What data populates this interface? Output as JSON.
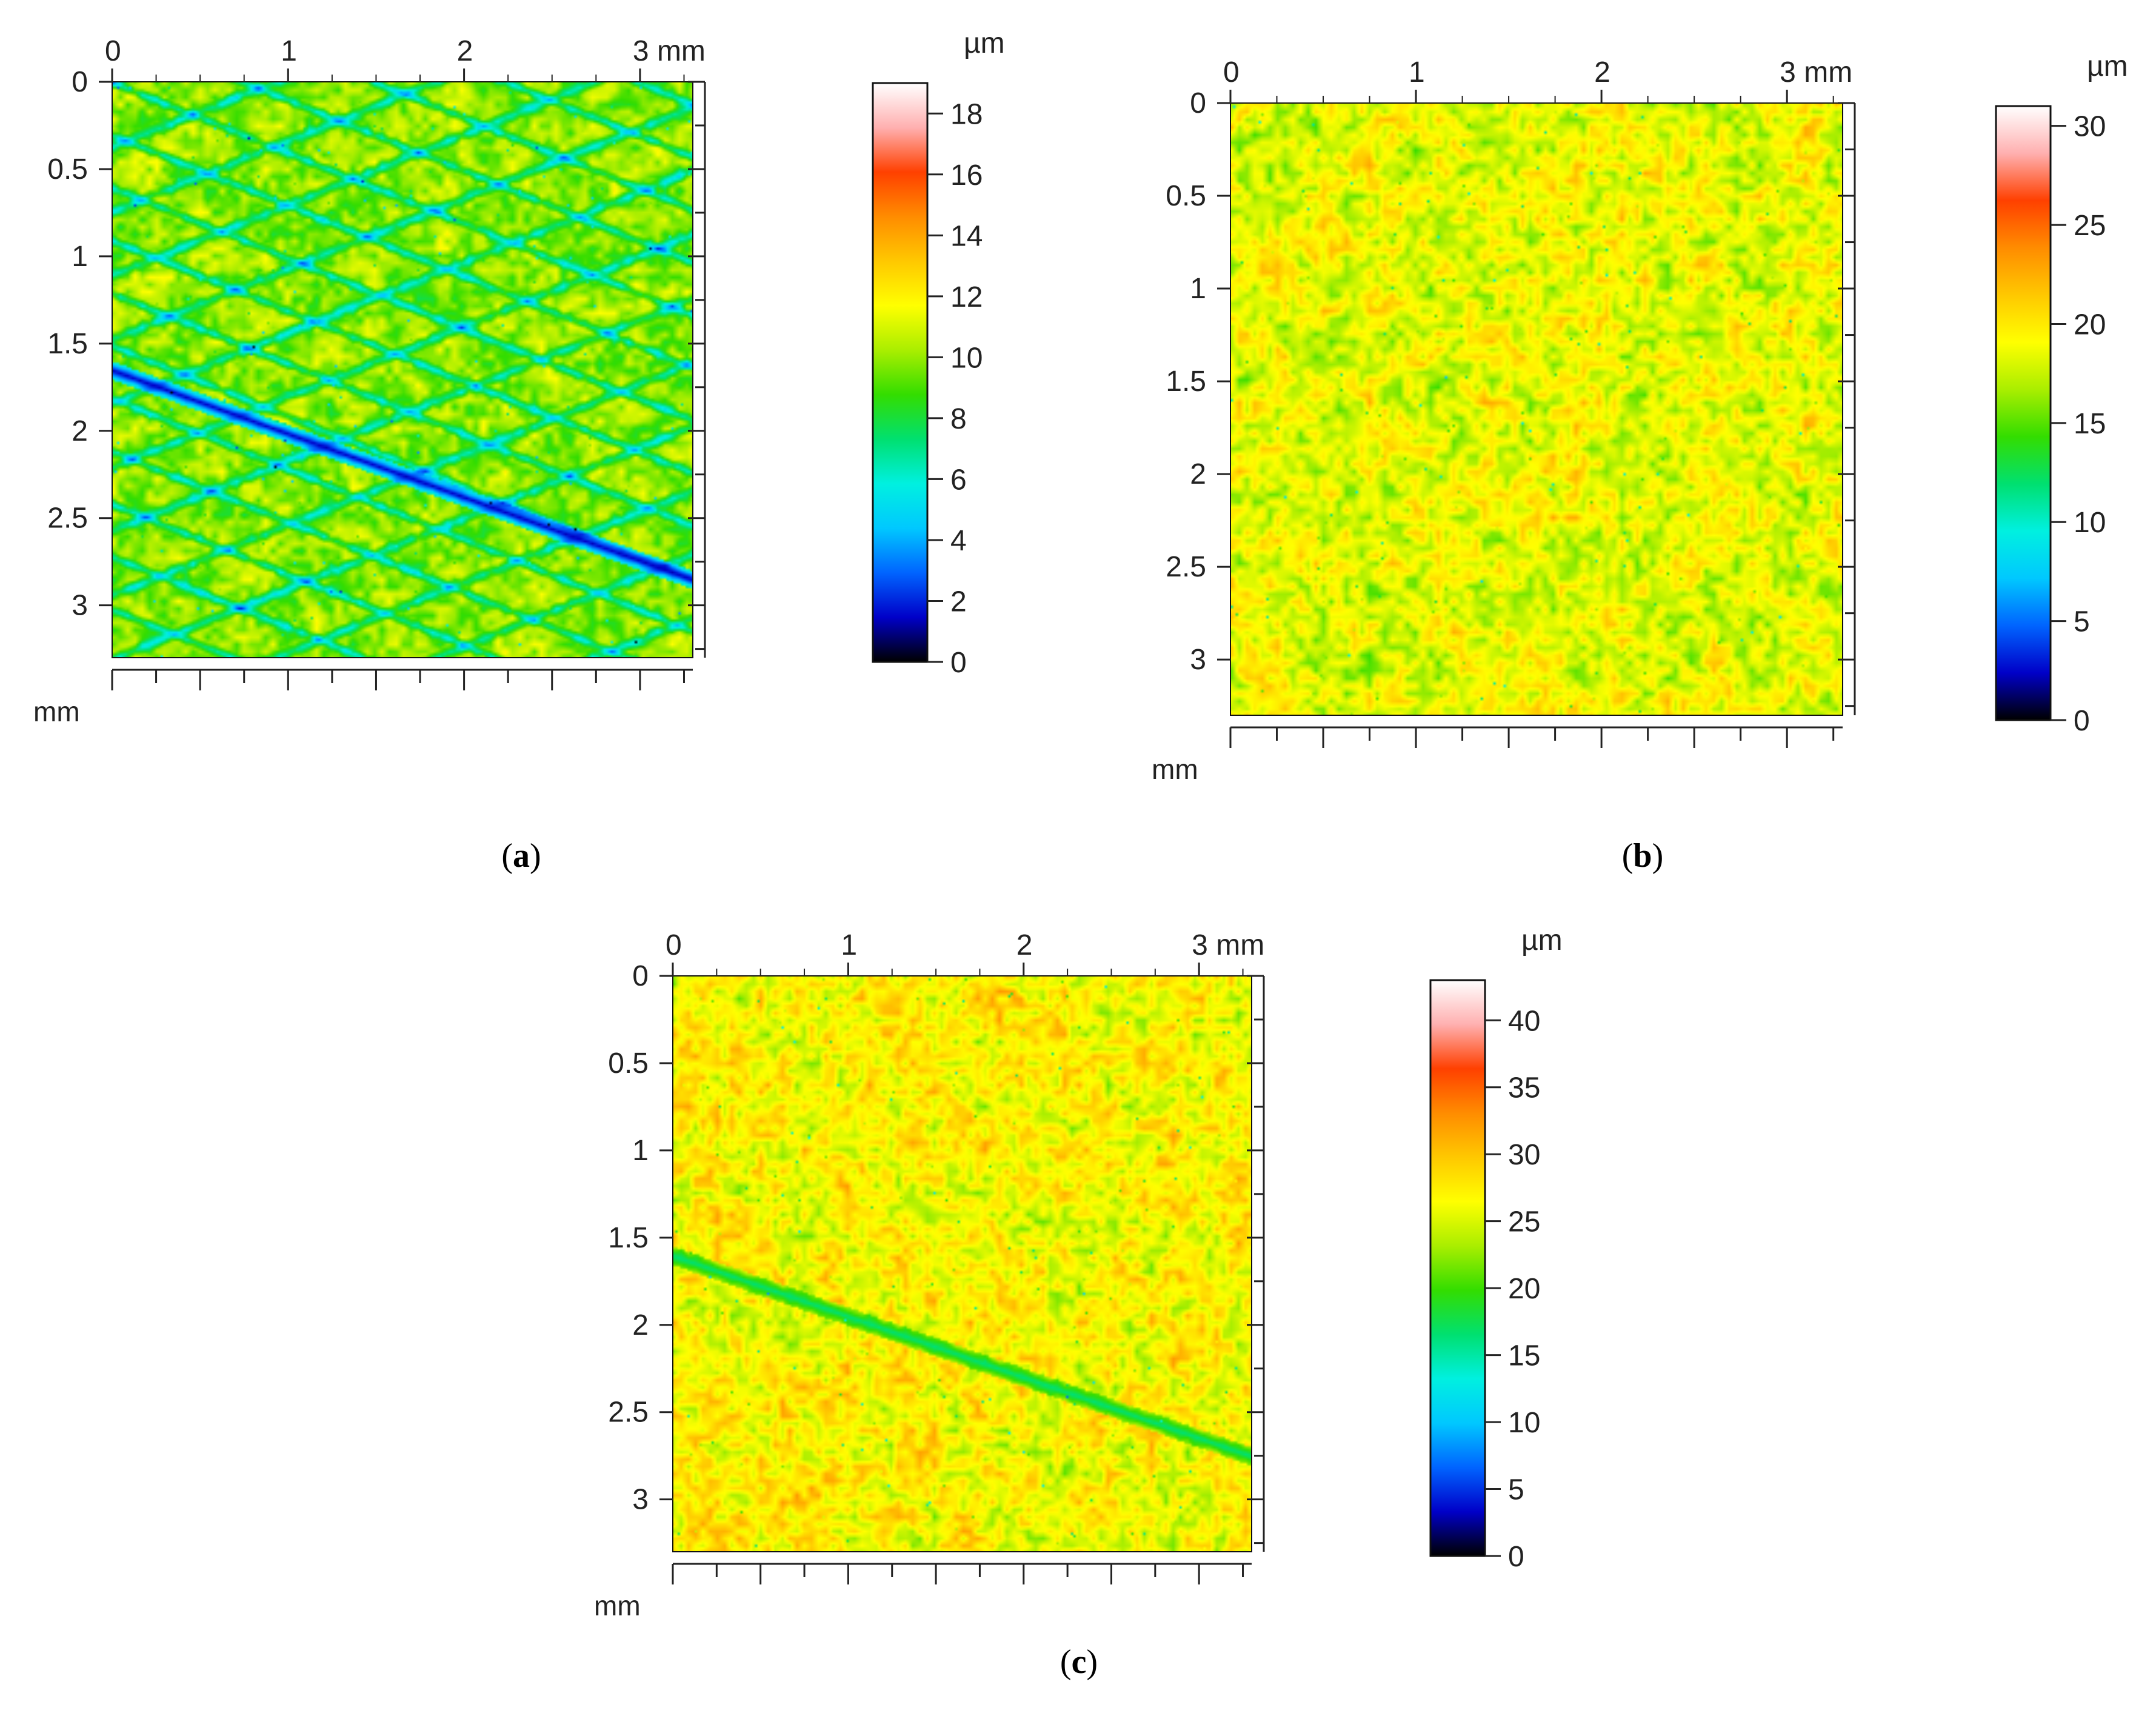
{
  "colormap": [
    "#000000",
    "#0000c8",
    "#0064ff",
    "#00c8ff",
    "#00f0e0",
    "#00e070",
    "#33dd00",
    "#aaee00",
    "#ffff00",
    "#ffc800",
    "#ff8c00",
    "#ff4000",
    "#ffb0b0",
    "#ffffff"
  ],
  "chart_data": [
    {
      "type": "heatmap",
      "panel_label": "a",
      "x_ticks": [
        "0",
        "1",
        "2",
        "3 mm"
      ],
      "y_ticks": [
        "0",
        "0.5",
        "1",
        "1.5",
        "2",
        "2.5",
        "3"
      ],
      "y_unit": "mm",
      "x_range_mm": [
        0,
        3.3
      ],
      "y_range_mm": [
        0,
        3.3
      ],
      "colorbar": {
        "unit": "µm",
        "min": 0,
        "max": 19,
        "ticks": [
          "0",
          "2",
          "4",
          "6",
          "8",
          "10",
          "12",
          "14",
          "16",
          "18"
        ],
        "tick_values": [
          0,
          2,
          4,
          6,
          8,
          10,
          12,
          14,
          16,
          18
        ]
      },
      "texture": {
        "kind": "crosshatch",
        "base_fraction": 0.52,
        "spread": 0.1,
        "seed": 11,
        "lines": [
          {
            "angle_deg": 22,
            "spacing_mm": 0.28,
            "depth": 0.18
          },
          {
            "angle_deg": -22,
            "spacing_mm": 0.34,
            "depth": 0.18
          }
        ],
        "deep_groove": {
          "from_mm": [
            0,
            1.65
          ],
          "to_mm": [
            3.3,
            2.85
          ],
          "value_fraction": 0.07
        }
      }
    },
    {
      "type": "heatmap",
      "panel_label": "b",
      "x_ticks": [
        "0",
        "1",
        "2",
        "3 mm"
      ],
      "y_ticks": [
        "0",
        "0.5",
        "1",
        "1.5",
        "2",
        "2.5",
        "3"
      ],
      "y_unit": "mm",
      "x_range_mm": [
        0,
        3.3
      ],
      "y_range_mm": [
        0,
        3.3
      ],
      "colorbar": {
        "unit": "µm",
        "min": 0,
        "max": 31,
        "ticks": [
          "0",
          "5",
          "10",
          "15",
          "20",
          "25",
          "30"
        ],
        "tick_values": [
          0,
          5,
          10,
          15,
          20,
          25,
          30
        ]
      },
      "texture": {
        "kind": "speckle",
        "base_fraction": 0.6,
        "spread": 0.12,
        "seed": 23
      }
    },
    {
      "type": "heatmap",
      "panel_label": "c",
      "x_ticks": [
        "0",
        "1",
        "2",
        "3 mm"
      ],
      "y_ticks": [
        "0",
        "0.5",
        "1",
        "1.5",
        "2",
        "2.5",
        "3"
      ],
      "y_unit": "mm",
      "x_range_mm": [
        0,
        3.3
      ],
      "y_range_mm": [
        0,
        3.3
      ],
      "colorbar": {
        "unit": "µm",
        "min": 0,
        "max": 43,
        "ticks": [
          "0",
          "5",
          "10",
          "15",
          "20",
          "25",
          "30",
          "35",
          "40"
        ],
        "tick_values": [
          0,
          5,
          10,
          15,
          20,
          25,
          30,
          35,
          40
        ]
      },
      "texture": {
        "kind": "speckle",
        "base_fraction": 0.62,
        "spread": 0.12,
        "seed": 37,
        "deep_groove": {
          "from_mm": [
            0,
            1.6
          ],
          "to_mm": [
            3.3,
            2.75
          ],
          "value_fraction": 0.38
        }
      }
    }
  ]
}
